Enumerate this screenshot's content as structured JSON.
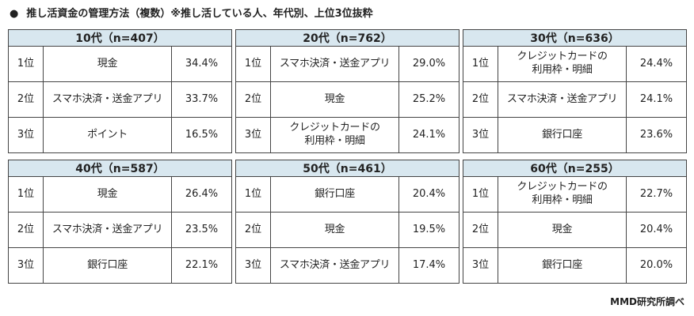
{
  "title": {
    "bullet": "●",
    "text": "推し活資金の管理方法（複数）※推し活している人、年代別、上位3位抜粋"
  },
  "tables": [
    {
      "header": "10代（n=407）",
      "rows": [
        {
          "rank": "1位",
          "item": "現金",
          "pct": "34.4%"
        },
        {
          "rank": "2位",
          "item": "スマホ決済・送金アプリ",
          "pct": "33.7%"
        },
        {
          "rank": "3位",
          "item": "ポイント",
          "pct": "16.5%"
        }
      ]
    },
    {
      "header": "20代（n=762）",
      "rows": [
        {
          "rank": "1位",
          "item": "スマホ決済・送金アプリ",
          "pct": "29.0%"
        },
        {
          "rank": "2位",
          "item": "現金",
          "pct": "25.2%"
        },
        {
          "rank": "3位",
          "item": "クレジットカードの\n利用枠・明細",
          "pct": "24.1%"
        }
      ]
    },
    {
      "header": "30代（n=636）",
      "rows": [
        {
          "rank": "1位",
          "item": "クレジットカードの\n利用枠・明細",
          "pct": "24.4%"
        },
        {
          "rank": "2位",
          "item": "スマホ決済・送金アプリ",
          "pct": "24.1%"
        },
        {
          "rank": "3位",
          "item": "銀行口座",
          "pct": "23.6%"
        }
      ]
    },
    {
      "header": "40代（n=587）",
      "rows": [
        {
          "rank": "1位",
          "item": "現金",
          "pct": "26.4%"
        },
        {
          "rank": "2位",
          "item": "スマホ決済・送金アプリ",
          "pct": "23.5%"
        },
        {
          "rank": "3位",
          "item": "銀行口座",
          "pct": "22.1%"
        }
      ]
    },
    {
      "header": "50代（n=461）",
      "rows": [
        {
          "rank": "1位",
          "item": "銀行口座",
          "pct": "20.4%"
        },
        {
          "rank": "2位",
          "item": "現金",
          "pct": "19.5%"
        },
        {
          "rank": "3位",
          "item": "スマホ決済・送金アプリ",
          "pct": "17.4%"
        }
      ]
    },
    {
      "header": "60代（n=255）",
      "rows": [
        {
          "rank": "1位",
          "item": "クレジットカードの\n利用枠・明細",
          "pct": "22.7%"
        },
        {
          "rank": "2位",
          "item": "現金",
          "pct": "20.4%"
        },
        {
          "rank": "3位",
          "item": "銀行口座",
          "pct": "20.0%"
        }
      ]
    }
  ],
  "footer": "MMD研究所調べ",
  "colors": {
    "header_bg": "#d8e7ef",
    "border": "#444444"
  }
}
